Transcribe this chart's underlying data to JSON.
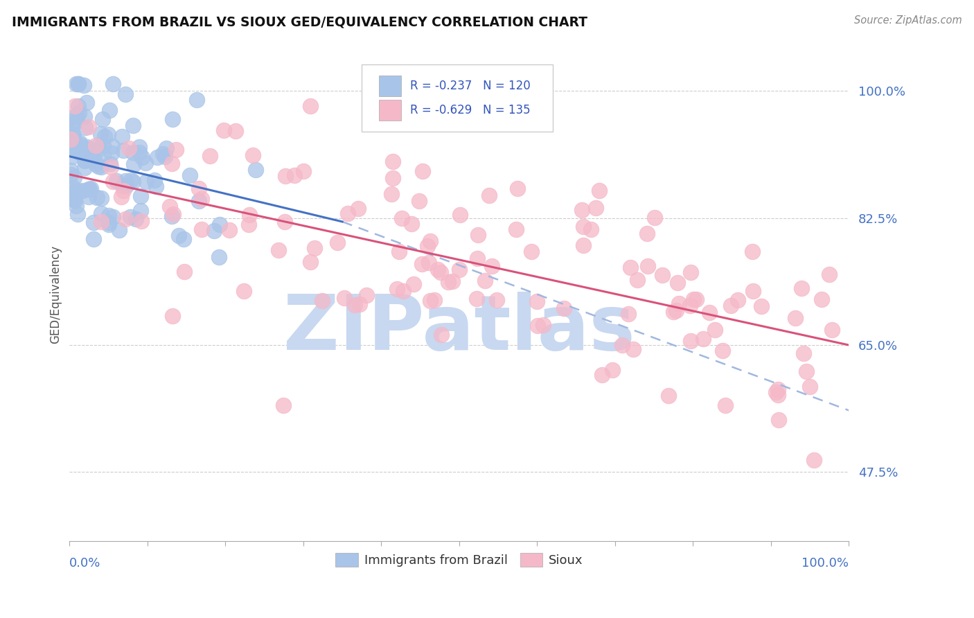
{
  "title": "IMMIGRANTS FROM BRAZIL VS SIOUX GED/EQUIVALENCY CORRELATION CHART",
  "source": "Source: ZipAtlas.com",
  "ylabel": "GED/Equivalency",
  "yticks": [
    0.475,
    0.65,
    0.825,
    1.0
  ],
  "ytick_labels": [
    "47.5%",
    "65.0%",
    "82.5%",
    "100.0%"
  ],
  "brazil_R": -0.237,
  "brazil_N": 120,
  "sioux_R": -0.629,
  "sioux_N": 135,
  "brazil_color": "#A8C4E8",
  "sioux_color": "#F5B8C8",
  "brazil_line_color": "#4472C4",
  "sioux_line_color": "#D9527A",
  "trend_dash_color": "#A0B8E0",
  "watermark_text": "ZIPatlas",
  "watermark_color": "#C8D8F0",
  "legend_brazil_label": "Immigrants from Brazil",
  "legend_sioux_label": "Sioux",
  "xmin": 0.0,
  "xmax": 1.0,
  "ymin": 0.38,
  "ymax": 1.06,
  "brazil_seed": 42,
  "sioux_seed": 7,
  "brazil_trend_x0": 0.0,
  "brazil_trend_y0": 0.91,
  "brazil_trend_x1": 0.35,
  "brazil_trend_y1": 0.82,
  "sioux_trend_x0": 0.0,
  "sioux_trend_y0": 0.885,
  "sioux_trend_x1": 1.0,
  "sioux_trend_y1": 0.65,
  "dash_trend_x0": 0.35,
  "dash_trend_y0": 0.82,
  "dash_trend_x1": 1.0,
  "dash_trend_y1": 0.56
}
